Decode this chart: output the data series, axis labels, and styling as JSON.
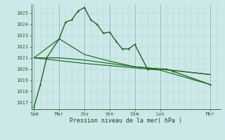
{
  "background_color": "#cce8e8",
  "grid_minor_color": "#b8d8d8",
  "grid_major_color": "#99c0c0",
  "line_color": "#1a6b1a",
  "xlabel": "Pression niveau de la mer( hPa )",
  "ylim": [
    1016.4,
    1025.8
  ],
  "yticks": [
    1017,
    1018,
    1019,
    1020,
    1021,
    1022,
    1023,
    1024,
    1025
  ],
  "xtick_labels": [
    "Sam",
    "Mar",
    "Jeu",
    "Ven",
    "Dim",
    "Lun",
    "Mer"
  ],
  "xtick_positions": [
    0,
    2,
    4,
    6,
    8,
    10,
    14
  ],
  "day_vlines": [
    0,
    2,
    4,
    6,
    8,
    10,
    14
  ],
  "xlim": [
    -0.2,
    14.8
  ],
  "series_main_x": [
    0,
    0.5,
    1.0,
    2.0,
    2.5,
    3.0,
    3.5,
    4.0,
    4.5,
    5.0,
    5.5,
    6.0,
    6.5,
    7.0,
    7.5,
    8.0,
    9.0,
    10.0,
    10.5,
    11.0,
    14.0
  ],
  "series_main_y": [
    1016.6,
    1018.6,
    1021.0,
    1022.7,
    1024.2,
    1024.4,
    1025.2,
    1025.5,
    1024.4,
    1024.0,
    1023.2,
    1023.3,
    1022.5,
    1021.8,
    1021.8,
    1022.2,
    1020.0,
    1020.0,
    1020.0,
    1019.8,
    1018.6
  ],
  "series_flat_x": [
    0,
    2,
    4,
    6,
    8,
    10,
    14
  ],
  "series_flat_y": [
    1021.0,
    1021.0,
    1020.8,
    1020.5,
    1020.2,
    1020.0,
    1019.5
  ],
  "series_mid_x": [
    0,
    2,
    4,
    6,
    8,
    10,
    14
  ],
  "series_mid_y": [
    1021.0,
    1022.7,
    1021.3,
    1020.7,
    1020.2,
    1020.0,
    1019.5
  ],
  "series_low_x": [
    0,
    4,
    8,
    10,
    14
  ],
  "series_low_y": [
    1021.0,
    1020.5,
    1020.1,
    1019.9,
    1018.6
  ]
}
